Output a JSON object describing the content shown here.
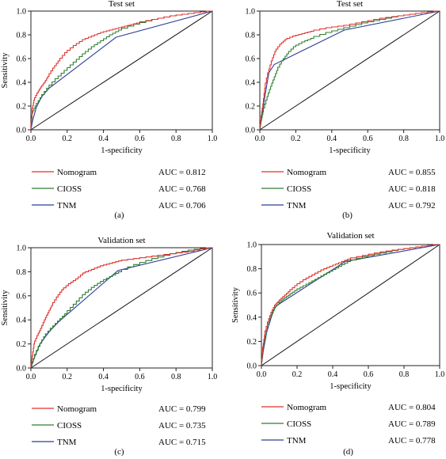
{
  "colors": {
    "nomogram": "#e0302b",
    "cioss": "#2e7d32",
    "tnm": "#2c3d96",
    "diagonal": "#111111",
    "axis": "#222222"
  },
  "chart_data": [
    {
      "type": "line",
      "title": "Test set",
      "xlabel": "1-specificity",
      "ylabel": "Sensitivity",
      "xlim": [
        0,
        1
      ],
      "ylim": [
        0,
        1
      ],
      "xticks": [
        "0.0",
        "0.2",
        "0.4",
        "0.6",
        "0.8",
        "1.0"
      ],
      "yticks": [
        "0.0",
        "0.2",
        "0.4",
        "0.6",
        "0.8",
        "1.0"
      ],
      "panel_label": "(a)",
      "series": [
        {
          "name": "Nomogram",
          "auc_text": "AUC = 0.812",
          "x": [
            0,
            0.01,
            0.02,
            0.04,
            0.06,
            0.08,
            0.1,
            0.13,
            0.16,
            0.2,
            0.25,
            0.3,
            0.35,
            0.4,
            0.45,
            0.5,
            0.55,
            0.6,
            0.7,
            0.8,
            0.9,
            1.0
          ],
          "y": [
            0,
            0.18,
            0.25,
            0.31,
            0.36,
            0.4,
            0.45,
            0.52,
            0.58,
            0.65,
            0.71,
            0.76,
            0.79,
            0.82,
            0.84,
            0.86,
            0.88,
            0.9,
            0.93,
            0.96,
            0.98,
            1.0
          ]
        },
        {
          "name": "CIOSS",
          "auc_text": "AUC = 0.768",
          "x": [
            0,
            0.01,
            0.03,
            0.06,
            0.1,
            0.15,
            0.2,
            0.25,
            0.3,
            0.35,
            0.4,
            0.45,
            0.5,
            0.6,
            0.7,
            0.8,
            0.9,
            1.0
          ],
          "y": [
            0,
            0.14,
            0.2,
            0.27,
            0.35,
            0.43,
            0.5,
            0.57,
            0.64,
            0.7,
            0.75,
            0.8,
            0.84,
            0.89,
            0.93,
            0.96,
            0.98,
            1.0
          ]
        },
        {
          "name": "TNM",
          "auc_text": "AUC = 0.706",
          "x": [
            0,
            0.01,
            0.03,
            0.06,
            0.1,
            0.47,
            1.0
          ],
          "y": [
            0,
            0.08,
            0.19,
            0.28,
            0.35,
            0.78,
            1.0
          ]
        }
      ]
    },
    {
      "type": "line",
      "title": "Test set",
      "xlabel": "1-specificity",
      "ylabel": "",
      "xlim": [
        0,
        1
      ],
      "ylim": [
        0,
        1
      ],
      "xticks": [
        "0.0",
        "0.2",
        "0.4",
        "0.6",
        "0.8",
        "1.0"
      ],
      "yticks": [
        "0.0",
        "0.2",
        "0.4",
        "0.6",
        "0.8",
        "1.0"
      ],
      "panel_label": "(b)",
      "series": [
        {
          "name": "Nomogram",
          "auc_text": "AUC = 0.855",
          "x": [
            0,
            0.01,
            0.02,
            0.03,
            0.05,
            0.07,
            0.09,
            0.12,
            0.15,
            0.2,
            0.25,
            0.3,
            0.4,
            0.5,
            0.6,
            0.7,
            0.8,
            0.9,
            1.0
          ],
          "y": [
            0,
            0.12,
            0.22,
            0.35,
            0.48,
            0.58,
            0.66,
            0.72,
            0.76,
            0.79,
            0.81,
            0.83,
            0.86,
            0.88,
            0.91,
            0.94,
            0.96,
            0.98,
            1.0
          ]
        },
        {
          "name": "CIOSS",
          "auc_text": "AUC = 0.818",
          "x": [
            0,
            0.01,
            0.02,
            0.04,
            0.06,
            0.08,
            0.1,
            0.13,
            0.16,
            0.2,
            0.25,
            0.3,
            0.4,
            0.5,
            0.6,
            0.7,
            0.8,
            0.9,
            1.0
          ],
          "y": [
            0,
            0.08,
            0.15,
            0.25,
            0.34,
            0.42,
            0.5,
            0.58,
            0.64,
            0.7,
            0.74,
            0.77,
            0.82,
            0.86,
            0.9,
            0.93,
            0.96,
            0.98,
            1.0
          ]
        },
        {
          "name": "TNM",
          "auc_text": "AUC = 0.792",
          "x": [
            0,
            0.01,
            0.03,
            0.05,
            0.08,
            0.47,
            1.0
          ],
          "y": [
            0,
            0.1,
            0.3,
            0.48,
            0.55,
            0.84,
            1.0
          ]
        }
      ]
    },
    {
      "type": "line",
      "title": "Validation set",
      "xlabel": "1-specificity",
      "ylabel": "Sensitivity",
      "xlim": [
        0,
        1
      ],
      "ylim": [
        0,
        1
      ],
      "xticks": [
        "0.0",
        "0.2",
        "0.4",
        "0.6",
        "0.8",
        "1.0"
      ],
      "yticks": [
        "0.0",
        "0.2",
        "0.4",
        "0.6",
        "0.8",
        "1.0"
      ],
      "panel_label": "(c)",
      "series": [
        {
          "name": "Nomogram",
          "auc_text": "AUC = 0.799",
          "x": [
            0,
            0.01,
            0.02,
            0.04,
            0.06,
            0.08,
            0.1,
            0.12,
            0.15,
            0.18,
            0.22,
            0.26,
            0.3,
            0.35,
            0.4,
            0.45,
            0.5,
            0.6,
            0.7,
            0.8,
            0.9,
            1.0
          ],
          "y": [
            0,
            0.1,
            0.2,
            0.27,
            0.33,
            0.4,
            0.46,
            0.52,
            0.59,
            0.65,
            0.7,
            0.74,
            0.79,
            0.82,
            0.85,
            0.87,
            0.89,
            0.91,
            0.93,
            0.95,
            0.97,
            1.0
          ]
        },
        {
          "name": "CIOSS",
          "auc_text": "AUC = 0.735",
          "x": [
            0,
            0.02,
            0.05,
            0.08,
            0.12,
            0.16,
            0.2,
            0.25,
            0.3,
            0.35,
            0.4,
            0.45,
            0.5,
            0.6,
            0.7,
            0.8,
            0.9,
            1.0
          ],
          "y": [
            0,
            0.08,
            0.18,
            0.26,
            0.33,
            0.39,
            0.45,
            0.53,
            0.61,
            0.67,
            0.72,
            0.76,
            0.8,
            0.86,
            0.91,
            0.95,
            0.98,
            1.0
          ]
        },
        {
          "name": "TNM",
          "auc_text": "AUC = 0.715",
          "x": [
            0,
            0.02,
            0.05,
            0.1,
            0.15,
            0.48,
            1.0
          ],
          "y": [
            0,
            0.09,
            0.2,
            0.3,
            0.38,
            0.81,
            1.0
          ]
        }
      ]
    },
    {
      "type": "line",
      "title": "Validation set",
      "xlabel": "1-specificity",
      "ylabel": "Sensitivity",
      "xlim": [
        0,
        1
      ],
      "ylim": [
        0,
        1
      ],
      "xticks": [
        "0.0",
        "0.2",
        "0.4",
        "0.6",
        "0.8",
        "1.0"
      ],
      "yticks": [
        "0.0",
        "0.2",
        "0.4",
        "0.6",
        "0.8",
        "1.0"
      ],
      "panel_label": "(d)",
      "series": [
        {
          "name": "Nomogram",
          "auc_text": "AUC = 0.804",
          "x": [
            0,
            0.01,
            0.02,
            0.04,
            0.06,
            0.08,
            0.1,
            0.13,
            0.16,
            0.2,
            0.25,
            0.3,
            0.35,
            0.4,
            0.45,
            0.5,
            0.6,
            0.7,
            0.8,
            0.9,
            1.0
          ],
          "y": [
            0,
            0.15,
            0.25,
            0.36,
            0.44,
            0.5,
            0.53,
            0.57,
            0.61,
            0.66,
            0.71,
            0.75,
            0.79,
            0.82,
            0.85,
            0.88,
            0.91,
            0.94,
            0.96,
            0.98,
            1.0
          ]
        },
        {
          "name": "CIOSS",
          "auc_text": "AUC = 0.789",
          "x": [
            0,
            0.01,
            0.02,
            0.04,
            0.06,
            0.08,
            0.1,
            0.13,
            0.16,
            0.2,
            0.25,
            0.3,
            0.35,
            0.4,
            0.45,
            0.5,
            0.6,
            0.7,
            0.8,
            0.9,
            1.0
          ],
          "y": [
            0,
            0.13,
            0.22,
            0.34,
            0.42,
            0.48,
            0.51,
            0.55,
            0.58,
            0.62,
            0.66,
            0.7,
            0.74,
            0.78,
            0.82,
            0.86,
            0.9,
            0.93,
            0.96,
            0.98,
            1.0
          ]
        },
        {
          "name": "TNM",
          "auc_text": "AUC = 0.778",
          "x": [
            0,
            0.01,
            0.03,
            0.06,
            0.08,
            0.47,
            1.0
          ],
          "y": [
            0,
            0.12,
            0.28,
            0.42,
            0.49,
            0.86,
            1.0
          ]
        }
      ]
    }
  ]
}
